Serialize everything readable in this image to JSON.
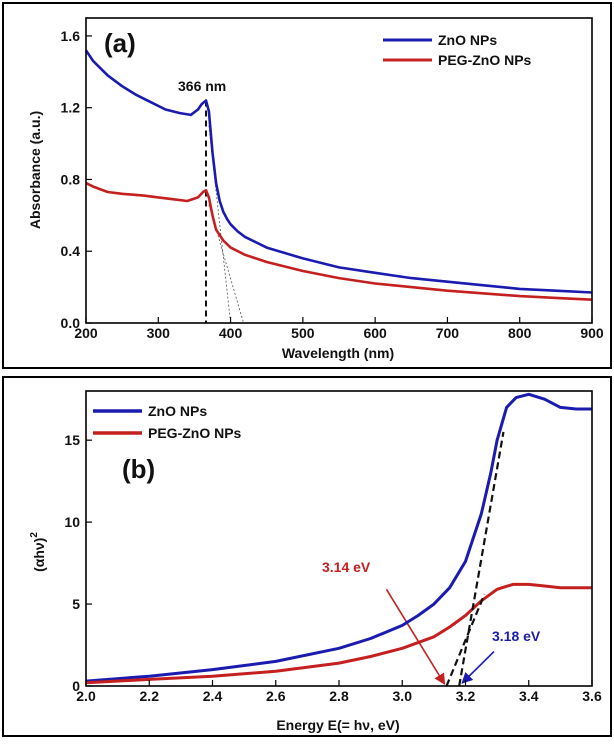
{
  "chart_data": [
    {
      "panel": "(a)",
      "type": "line",
      "xlabel": "Wavelength (nm)",
      "ylabel": "Absorbance (a.u.)",
      "xlim": [
        200,
        900
      ],
      "ylim": [
        0.0,
        1.7
      ],
      "xticks": [
        200,
        300,
        400,
        500,
        600,
        700,
        800,
        900
      ],
      "yticks": [
        0.0,
        0.4,
        0.8,
        1.2,
        1.6
      ],
      "ytick_labels": [
        "0.0",
        "0.4",
        "0.8",
        "1.2",
        "1.6"
      ],
      "legend_position": "top-right",
      "annotation": "366 nm",
      "peak_x": 366,
      "tangent_intercepts": [
        400,
        418
      ],
      "series": [
        {
          "name": "ZnO NPs",
          "color": "#1b1bb0",
          "x": [
            200,
            210,
            230,
            250,
            270,
            290,
            310,
            330,
            345,
            355,
            360,
            366,
            370,
            375,
            380,
            385,
            390,
            395,
            400,
            410,
            420,
            450,
            500,
            550,
            600,
            650,
            700,
            750,
            800,
            850,
            900
          ],
          "y": [
            1.52,
            1.46,
            1.38,
            1.32,
            1.27,
            1.23,
            1.19,
            1.17,
            1.16,
            1.19,
            1.22,
            1.24,
            1.18,
            0.95,
            0.78,
            0.68,
            0.62,
            0.58,
            0.55,
            0.51,
            0.48,
            0.42,
            0.36,
            0.31,
            0.28,
            0.25,
            0.23,
            0.21,
            0.19,
            0.18,
            0.17
          ]
        },
        {
          "name": "PEG-ZnO NPs",
          "color": "#c42020",
          "x": [
            200,
            210,
            230,
            250,
            280,
            300,
            320,
            340,
            355,
            362,
            366,
            370,
            375,
            380,
            390,
            400,
            420,
            450,
            500,
            550,
            600,
            700,
            800,
            850,
            900
          ],
          "y": [
            0.78,
            0.76,
            0.73,
            0.72,
            0.71,
            0.7,
            0.69,
            0.68,
            0.7,
            0.73,
            0.74,
            0.7,
            0.6,
            0.52,
            0.46,
            0.42,
            0.38,
            0.34,
            0.29,
            0.25,
            0.22,
            0.18,
            0.15,
            0.14,
            0.13
          ]
        }
      ]
    },
    {
      "panel": "(b)",
      "type": "line",
      "xlabel": "Energy E(= hν, eV)",
      "ylabel": "(αhν)",
      "ylabel_superscript": "2",
      "xlim": [
        2.0,
        3.6
      ],
      "ylim": [
        0,
        18
      ],
      "xticks": [
        2.0,
        2.2,
        2.4,
        2.6,
        2.8,
        3.0,
        3.2,
        3.4,
        3.6
      ],
      "xtick_labels": [
        "2.0",
        "2.2",
        "2.4",
        "2.6",
        "2.8",
        "3.0",
        "3.2",
        "3.4",
        "3.6"
      ],
      "yticks": [
        0,
        5,
        10,
        15
      ],
      "legend_position": "top-left",
      "annotations": [
        {
          "text": "3.14 eV",
          "color": "#c42020",
          "x": 3.14
        },
        {
          "text": "3.18 eV",
          "color": "#1b1bb0",
          "x": 3.18
        }
      ],
      "series": [
        {
          "name": "ZnO NPs",
          "color": "#1b1bb0",
          "x": [
            2.0,
            2.2,
            2.4,
            2.6,
            2.8,
            2.9,
            3.0,
            3.05,
            3.1,
            3.15,
            3.2,
            3.25,
            3.28,
            3.3,
            3.33,
            3.36,
            3.4,
            3.45,
            3.5,
            3.55,
            3.6
          ],
          "y": [
            0.3,
            0.6,
            1.0,
            1.5,
            2.3,
            2.9,
            3.7,
            4.3,
            5.0,
            6.0,
            7.6,
            10.5,
            13.0,
            15.0,
            17.0,
            17.6,
            17.8,
            17.5,
            17.0,
            16.9,
            16.9
          ]
        },
        {
          "name": "PEG-ZnO NPs",
          "color": "#c42020",
          "x": [
            2.0,
            2.2,
            2.4,
            2.6,
            2.8,
            2.9,
            3.0,
            3.1,
            3.15,
            3.2,
            3.25,
            3.3,
            3.35,
            3.4,
            3.45,
            3.5,
            3.55,
            3.6
          ],
          "y": [
            0.2,
            0.4,
            0.6,
            0.9,
            1.4,
            1.8,
            2.3,
            3.0,
            3.6,
            4.3,
            5.2,
            5.9,
            6.2,
            6.2,
            6.1,
            6.0,
            6.0,
            6.0
          ]
        }
      ]
    }
  ]
}
